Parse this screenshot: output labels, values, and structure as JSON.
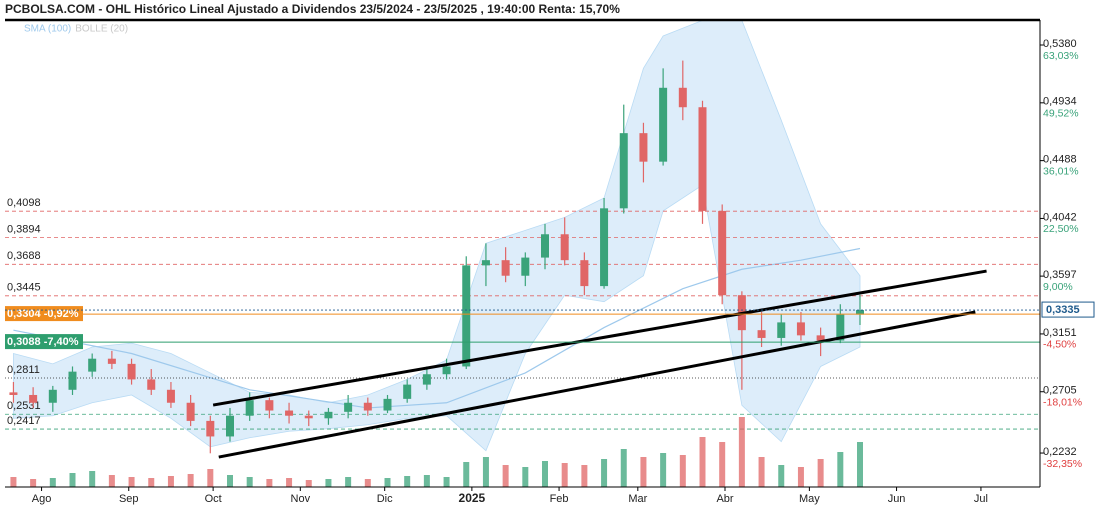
{
  "chart_data": {
    "type": "candlestick",
    "title": "PCBOLSA.COM - OHL Histórico Lineal Ajustado a Dividendos 23/5/2024 - 23/5/2025 , 19:40:00 Renta: 15,70%",
    "legend": [
      {
        "label": "SMA (100)",
        "color": "#9ec9ec"
      },
      {
        "label": "BOLLE (20)",
        "color": "#c8c8c8"
      }
    ],
    "up_color": "#3aa37a",
    "down_color": "#e06666",
    "xlim": [
      "2024-07-19",
      "2025-07-22"
    ],
    "xticks": [
      {
        "value": "2024-08-01",
        "label": "Ago"
      },
      {
        "value": "2024-09-01",
        "label": "Sep"
      },
      {
        "value": "2024-10-01",
        "label": "Oct"
      },
      {
        "value": "2024-11-01",
        "label": "Nov"
      },
      {
        "value": "2024-12-01",
        "label": "Dic"
      },
      {
        "value": "2025-01-01",
        "label": "2025",
        "bold": true
      },
      {
        "value": "2025-02-01",
        "label": "Feb"
      },
      {
        "value": "2025-03-01",
        "label": "Mar"
      },
      {
        "value": "2025-04-01",
        "label": "Abr"
      },
      {
        "value": "2025-05-01",
        "label": "May"
      },
      {
        "value": "2025-06-01",
        "label": "Jun"
      },
      {
        "value": "2025-07-01",
        "label": "Jul"
      }
    ],
    "ylim": [
      0.197,
      0.5573
    ],
    "yticks": [
      {
        "value": 0.538,
        "label": "0,5380",
        "change": "63,03%"
      },
      {
        "value": 0.4934,
        "label": "0,4934",
        "change": "49,52%"
      },
      {
        "value": 0.4488,
        "label": "0,4488",
        "change": "36,01%"
      },
      {
        "value": 0.4042,
        "label": "0,4042",
        "change": "22,50%"
      },
      {
        "value": 0.3597,
        "label": "0,3597",
        "change": "9,00%"
      },
      {
        "value": 0.3151,
        "label": "0,3151",
        "change": "-4,50%"
      },
      {
        "value": 0.2705,
        "label": "0,2705",
        "change": "-18,01%"
      },
      {
        "value": 0.2232,
        "label": "0,2232",
        "change": "-32,35%"
      }
    ],
    "levels": [
      {
        "value": 0.4098,
        "label": "0,4098",
        "color": "#e06666"
      },
      {
        "value": 0.3894,
        "label": "0,3894",
        "color": "#e06666"
      },
      {
        "value": 0.3688,
        "label": "0,3688",
        "color": "#e06666"
      },
      {
        "value": 0.3445,
        "label": "0,3445",
        "color": "#e06666"
      },
      {
        "value": 0.2811,
        "label": "0,2811",
        "color": "#222222"
      },
      {
        "value": 0.2531,
        "label": "0,2531",
        "color": "#3aa37a"
      },
      {
        "value": 0.2417,
        "label": "0,2417",
        "color": "#3aa37a"
      }
    ],
    "badges": [
      {
        "value": 0.3304,
        "label": "0,3304 -0,92%",
        "color": "#f08c1e"
      },
      {
        "value": 0.3088,
        "label": "0,3088 -7,40%",
        "color": "#2e9e6e"
      }
    ],
    "last": {
      "value": 0.3335,
      "label": "0,3335",
      "color": "#1e5a8c"
    },
    "x": [
      "2024-07-22",
      "2024-07-29",
      "2024-08-05",
      "2024-08-12",
      "2024-08-19",
      "2024-08-26",
      "2024-09-02",
      "2024-09-09",
      "2024-09-16",
      "2024-09-23",
      "2024-09-30",
      "2024-10-07",
      "2024-10-14",
      "2024-10-21",
      "2024-10-28",
      "2024-11-04",
      "2024-11-11",
      "2024-11-18",
      "2024-11-25",
      "2024-12-02",
      "2024-12-09",
      "2024-12-16",
      "2024-12-23",
      "2024-12-30",
      "2025-01-06",
      "2025-01-13",
      "2025-01-20",
      "2025-01-27",
      "2025-02-03",
      "2025-02-10",
      "2025-02-17",
      "2025-02-24",
      "2025-03-03",
      "2025-03-10",
      "2025-03-17",
      "2025-03-24",
      "2025-03-31",
      "2025-04-07",
      "2025-04-14",
      "2025-04-21",
      "2025-04-28",
      "2025-05-05",
      "2025-05-12",
      "2025-05-19"
    ],
    "open": [
      0.27,
      0.268,
      0.262,
      0.272,
      0.286,
      0.296,
      0.292,
      0.28,
      0.272,
      0.262,
      0.248,
      0.236,
      0.252,
      0.264,
      0.256,
      0.252,
      0.25,
      0.255,
      0.262,
      0.256,
      0.265,
      0.276,
      0.284,
      0.29,
      0.368,
      0.372,
      0.36,
      0.374,
      0.392,
      0.372,
      0.352,
      0.412,
      0.47,
      0.448,
      0.505,
      0.49,
      0.41,
      0.345,
      0.318,
      0.312,
      0.324,
      0.314,
      0.31,
      0.33
    ],
    "high": [
      0.278,
      0.274,
      0.275,
      0.29,
      0.3,
      0.302,
      0.296,
      0.288,
      0.278,
      0.268,
      0.252,
      0.258,
      0.27,
      0.266,
      0.262,
      0.256,
      0.258,
      0.268,
      0.266,
      0.268,
      0.28,
      0.29,
      0.296,
      0.375,
      0.385,
      0.382,
      0.378,
      0.4,
      0.405,
      0.378,
      0.42,
      0.492,
      0.478,
      0.52,
      0.526,
      0.495,
      0.415,
      0.348,
      0.332,
      0.33,
      0.332,
      0.32,
      0.338,
      0.345
    ],
    "low": [
      0.262,
      0.258,
      0.255,
      0.268,
      0.282,
      0.288,
      0.276,
      0.268,
      0.258,
      0.244,
      0.223,
      0.232,
      0.248,
      0.25,
      0.246,
      0.244,
      0.245,
      0.25,
      0.252,
      0.254,
      0.262,
      0.272,
      0.28,
      0.288,
      0.352,
      0.355,
      0.352,
      0.365,
      0.368,
      0.345,
      0.35,
      0.408,
      0.432,
      0.445,
      0.48,
      0.4,
      0.338,
      0.272,
      0.305,
      0.306,
      0.31,
      0.298,
      0.308,
      0.322
    ],
    "close": [
      0.268,
      0.262,
      0.272,
      0.286,
      0.296,
      0.292,
      0.28,
      0.272,
      0.262,
      0.248,
      0.236,
      0.252,
      0.264,
      0.256,
      0.252,
      0.25,
      0.255,
      0.262,
      0.256,
      0.265,
      0.276,
      0.284,
      0.29,
      0.368,
      0.372,
      0.36,
      0.374,
      0.392,
      0.372,
      0.352,
      0.412,
      0.47,
      0.448,
      0.505,
      0.49,
      0.41,
      0.345,
      0.318,
      0.312,
      0.324,
      0.314,
      0.31,
      0.33,
      0.3335
    ],
    "volume": [
      10,
      8,
      9,
      14,
      16,
      12,
      10,
      9,
      11,
      13,
      18,
      12,
      10,
      8,
      9,
      7,
      8,
      10,
      8,
      9,
      11,
      12,
      10,
      25,
      30,
      22,
      20,
      26,
      24,
      22,
      28,
      38,
      30,
      34,
      32,
      50,
      45,
      70,
      30,
      22,
      20,
      28,
      35,
      45
    ],
    "bollinger": {
      "x": [
        "2024-07-22",
        "2024-08-05",
        "2024-08-19",
        "2024-09-02",
        "2024-09-16",
        "2024-09-30",
        "2024-10-14",
        "2024-10-28",
        "2024-11-11",
        "2024-11-25",
        "2024-12-09",
        "2024-12-23",
        "2025-01-06",
        "2025-01-20",
        "2025-02-03",
        "2025-02-17",
        "2025-03-03",
        "2025-03-10",
        "2025-03-24",
        "2025-04-07",
        "2025-04-21",
        "2025-05-05",
        "2025-05-19"
      ],
      "upper": [
        0.3,
        0.292,
        0.305,
        0.308,
        0.3,
        0.285,
        0.27,
        0.268,
        0.262,
        0.268,
        0.28,
        0.295,
        0.385,
        0.395,
        0.405,
        0.42,
        0.52,
        0.545,
        0.557,
        0.557,
        0.48,
        0.4,
        0.36
      ],
      "lower": [
        0.25,
        0.252,
        0.262,
        0.268,
        0.25,
        0.228,
        0.235,
        0.24,
        0.242,
        0.245,
        0.25,
        0.252,
        0.225,
        0.3,
        0.345,
        0.34,
        0.36,
        0.41,
        0.43,
        0.26,
        0.232,
        0.29,
        0.305
      ]
    },
    "sma": {
      "x": [
        "2024-07-22",
        "2024-09-02",
        "2024-10-14",
        "2024-11-25",
        "2024-12-23",
        "2025-01-20",
        "2025-02-17",
        "2025-03-17",
        "2025-04-07",
        "2025-04-28",
        "2025-05-19"
      ],
      "values": [
        0.318,
        0.3,
        0.272,
        0.258,
        0.262,
        0.285,
        0.32,
        0.35,
        0.365,
        0.372,
        0.381
      ]
    },
    "trendlines": [
      {
        "x": [
          "2024-10-01",
          "2025-07-03"
        ],
        "y": [
          0.2602,
          0.3636
        ]
      },
      {
        "x": [
          "2024-10-03",
          "2025-06-29"
        ],
        "y": [
          0.2201,
          0.332
        ]
      }
    ]
  }
}
